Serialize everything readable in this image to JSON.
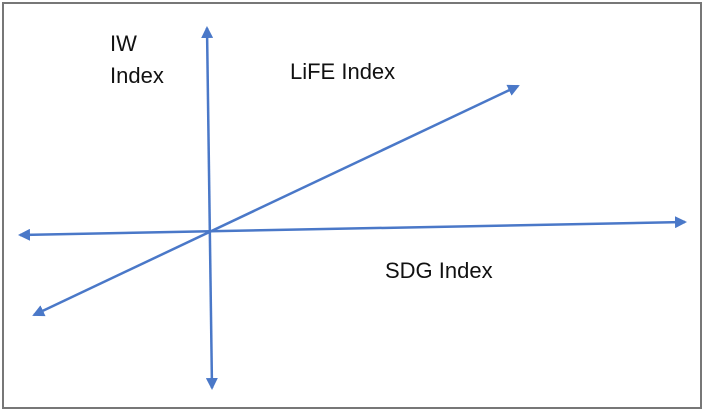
{
  "axes": [
    {
      "label_lines": [
        "IW",
        "Index"
      ]
    },
    {
      "label_lines": [
        "LiFE Index"
      ]
    },
    {
      "label_lines": [
        "SDG Index"
      ]
    }
  ]
}
